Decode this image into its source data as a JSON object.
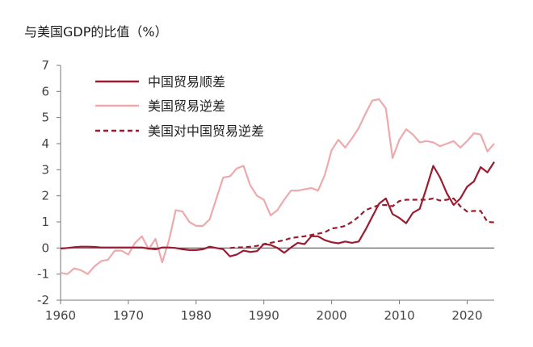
{
  "chart_data": {
    "type": "line",
    "title": "与美国GDP的比值（%）",
    "xlabel": "",
    "ylabel": "",
    "xlim": [
      1960,
      2024
    ],
    "ylim": [
      -2,
      7
    ],
    "x_ticks": [
      "1960",
      "1970",
      "1980",
      "1990",
      "2000",
      "2010",
      "2020"
    ],
    "y_ticks": [
      "-2",
      "-1",
      "0",
      "1",
      "2",
      "3",
      "4",
      "5",
      "6",
      "7"
    ],
    "grid": false,
    "legend_position": "top-left",
    "series": [
      {
        "name": "中国贸易顺差",
        "color": "#9b1b30",
        "dash": "solid",
        "x": [
          1960,
          1961,
          1962,
          1963,
          1964,
          1965,
          1966,
          1967,
          1968,
          1969,
          1970,
          1971,
          1972,
          1973,
          1974,
          1975,
          1976,
          1977,
          1978,
          1979,
          1980,
          1981,
          1982,
          1983,
          1984,
          1985,
          1986,
          1987,
          1988,
          1989,
          1990,
          1991,
          1992,
          1993,
          1994,
          1995,
          1996,
          1997,
          1998,
          1999,
          2000,
          2001,
          2002,
          2003,
          2004,
          2005,
          2006,
          2007,
          2008,
          2009,
          2010,
          2011,
          2012,
          2013,
          2014,
          2015,
          2016,
          2017,
          2018,
          2019,
          2020,
          2021,
          2022,
          2023,
          2024
        ],
        "y": [
          -0.02,
          0.0,
          0.03,
          0.05,
          0.05,
          0.04,
          0.02,
          0.02,
          0.02,
          0.02,
          0.02,
          0.02,
          0.02,
          -0.02,
          -0.05,
          0.02,
          0.02,
          0.0,
          -0.05,
          -0.08,
          -0.08,
          -0.05,
          0.05,
          0.0,
          -0.05,
          -0.32,
          -0.25,
          -0.1,
          -0.15,
          -0.12,
          0.15,
          0.12,
          0.0,
          -0.18,
          0.02,
          0.2,
          0.15,
          0.45,
          0.45,
          0.3,
          0.22,
          0.18,
          0.25,
          0.2,
          0.25,
          0.7,
          1.2,
          1.7,
          1.9,
          1.3,
          1.15,
          0.95,
          1.35,
          1.5,
          2.3,
          3.15,
          2.7,
          2.1,
          1.65,
          1.9,
          2.35,
          2.55,
          3.1,
          2.9,
          3.3
        ]
      },
      {
        "name": "美国贸易逆差",
        "color": "#eea9ad",
        "dash": "solid",
        "x": [
          1960,
          1961,
          1962,
          1963,
          1964,
          1965,
          1966,
          1967,
          1968,
          1969,
          1970,
          1971,
          1972,
          1973,
          1974,
          1975,
          1976,
          1977,
          1978,
          1979,
          1980,
          1981,
          1982,
          1983,
          1984,
          1985,
          1986,
          1987,
          1988,
          1989,
          1990,
          1991,
          1992,
          1993,
          1994,
          1995,
          1996,
          1997,
          1998,
          1999,
          2000,
          2001,
          2002,
          2003,
          2004,
          2005,
          2006,
          2007,
          2008,
          2009,
          2010,
          2011,
          2012,
          2013,
          2014,
          2015,
          2016,
          2017,
          2018,
          2019,
          2020,
          2021,
          2022,
          2023,
          2024
        ],
        "y": [
          -0.95,
          -1.0,
          -0.78,
          -0.85,
          -1.0,
          -0.7,
          -0.5,
          -0.45,
          -0.1,
          -0.1,
          -0.25,
          0.2,
          0.45,
          -0.05,
          0.35,
          -0.55,
          0.3,
          1.45,
          1.4,
          1.0,
          0.85,
          0.85,
          1.1,
          1.9,
          2.7,
          2.75,
          3.05,
          3.15,
          2.4,
          2.0,
          1.85,
          1.25,
          1.45,
          1.85,
          2.2,
          2.2,
          2.25,
          2.3,
          2.2,
          2.8,
          3.75,
          4.15,
          3.85,
          4.2,
          4.6,
          5.15,
          5.65,
          5.7,
          5.35,
          3.45,
          4.15,
          4.55,
          4.35,
          4.05,
          4.1,
          4.05,
          3.9,
          4.0,
          4.1,
          3.85,
          4.1,
          4.4,
          4.35,
          3.7,
          4.0
        ]
      },
      {
        "name": "美国对中国贸易逆差",
        "color": "#9b1b30",
        "dash": "dashed",
        "x": [
          1985,
          1986,
          1987,
          1988,
          1989,
          1990,
          1991,
          1992,
          1993,
          1994,
          1995,
          1996,
          1997,
          1998,
          1999,
          2000,
          2001,
          2002,
          2003,
          2004,
          2005,
          2006,
          2007,
          2008,
          2009,
          2010,
          2011,
          2012,
          2013,
          2014,
          2015,
          2016,
          2017,
          2018,
          2019,
          2020,
          2021,
          2022,
          2023,
          2024
        ],
        "y": [
          0.0,
          0.02,
          0.03,
          0.05,
          0.08,
          0.15,
          0.2,
          0.25,
          0.3,
          0.38,
          0.42,
          0.45,
          0.5,
          0.55,
          0.6,
          0.75,
          0.78,
          0.85,
          1.0,
          1.2,
          1.45,
          1.55,
          1.65,
          1.65,
          1.6,
          1.8,
          1.85,
          1.85,
          1.85,
          1.85,
          1.9,
          1.82,
          1.85,
          1.9,
          1.6,
          1.4,
          1.42,
          1.42,
          1.0,
          0.98
        ]
      }
    ]
  }
}
